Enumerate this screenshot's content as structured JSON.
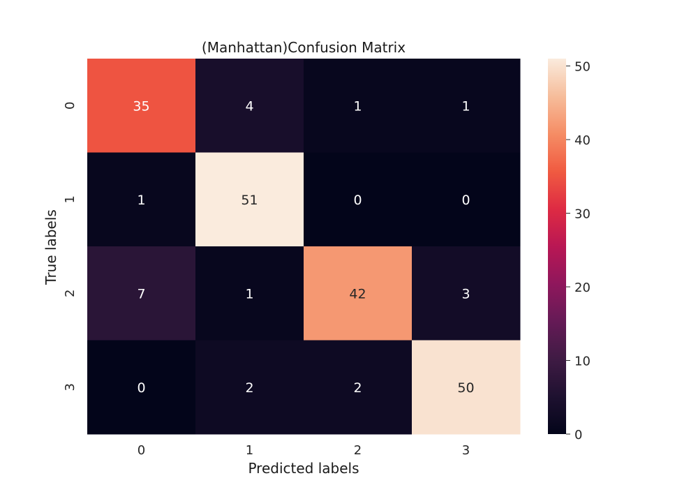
{
  "chart_data": {
    "type": "heatmap",
    "title": "(Manhattan)Confusion Matrix",
    "xlabel": "Predicted labels",
    "ylabel": "True labels",
    "x_categories": [
      "0",
      "1",
      "2",
      "3"
    ],
    "y_categories": [
      "0",
      "1",
      "2",
      "3"
    ],
    "matrix": [
      [
        35,
        4,
        1,
        1
      ],
      [
        1,
        51,
        0,
        0
      ],
      [
        7,
        1,
        42,
        3
      ],
      [
        0,
        2,
        2,
        50
      ]
    ],
    "colorbar": {
      "range": [
        0,
        51
      ],
      "ticks": [
        0,
        10,
        20,
        30,
        40,
        50
      ],
      "colormap": "rocket"
    },
    "annotate": true
  }
}
